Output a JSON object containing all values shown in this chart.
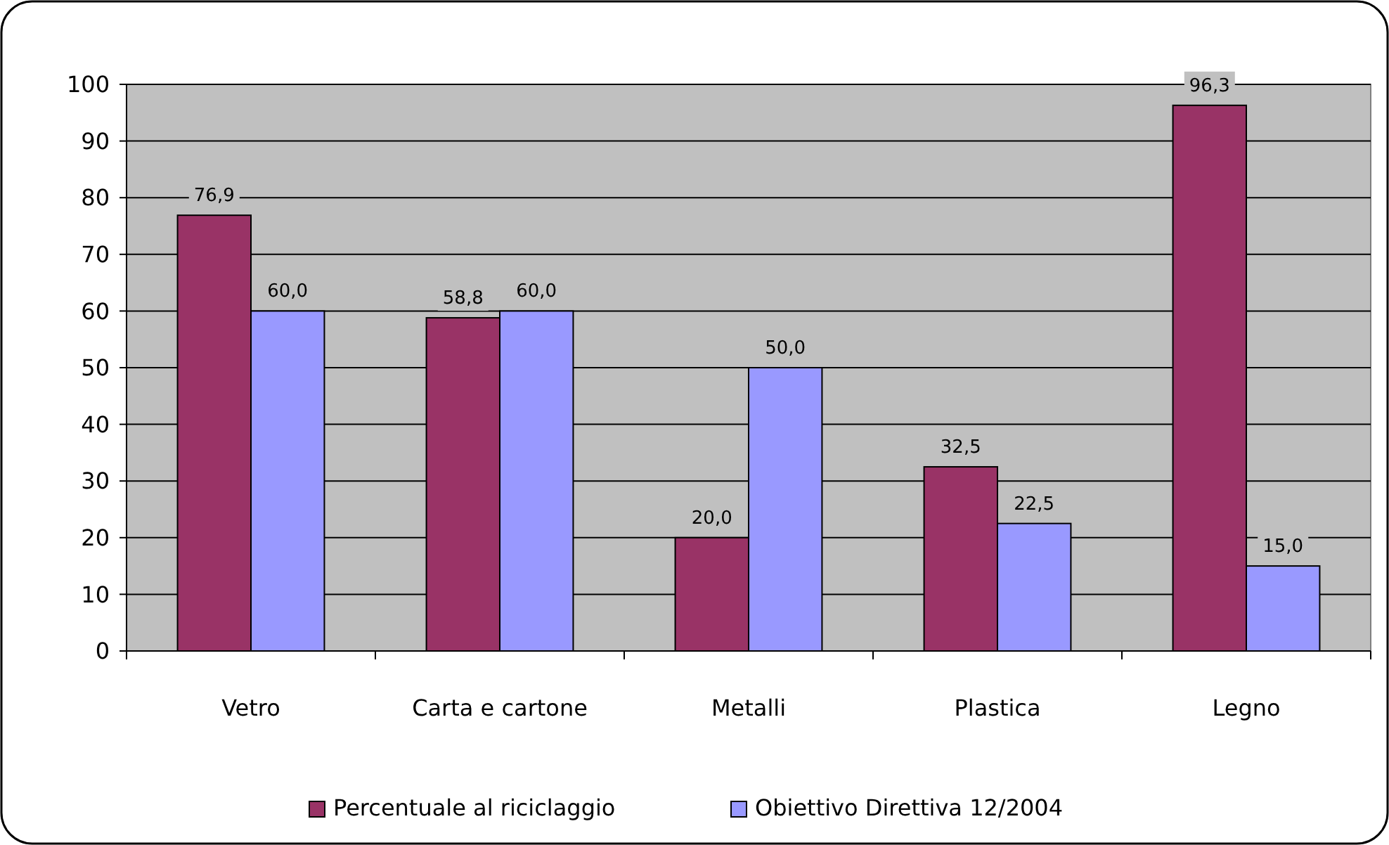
{
  "chart_data": {
    "type": "bar",
    "categories": [
      "Vetro",
      "Carta e cartone",
      "Metalli",
      "Plastica",
      "Legno"
    ],
    "series": [
      {
        "name": "Percentuale al riciclaggio",
        "color": "#993366",
        "values": [
          76.9,
          58.8,
          20.0,
          32.5,
          96.3
        ],
        "value_labels": [
          "76,9",
          "58,8",
          "20,0",
          "32,5",
          "96,3"
        ]
      },
      {
        "name": "Obiettivo Direttiva 12/2004",
        "color": "#9999ff",
        "values": [
          60.0,
          60.0,
          50.0,
          22.5,
          15.0
        ],
        "value_labels": [
          "60,0",
          "60,0",
          "50,0",
          "22,5",
          "15,0"
        ]
      }
    ],
    "ylim": [
      0,
      100
    ],
    "yticks": [
      0,
      10,
      20,
      30,
      40,
      50,
      60,
      70,
      80,
      90,
      100
    ],
    "grid": "y",
    "legend": "bottom"
  }
}
